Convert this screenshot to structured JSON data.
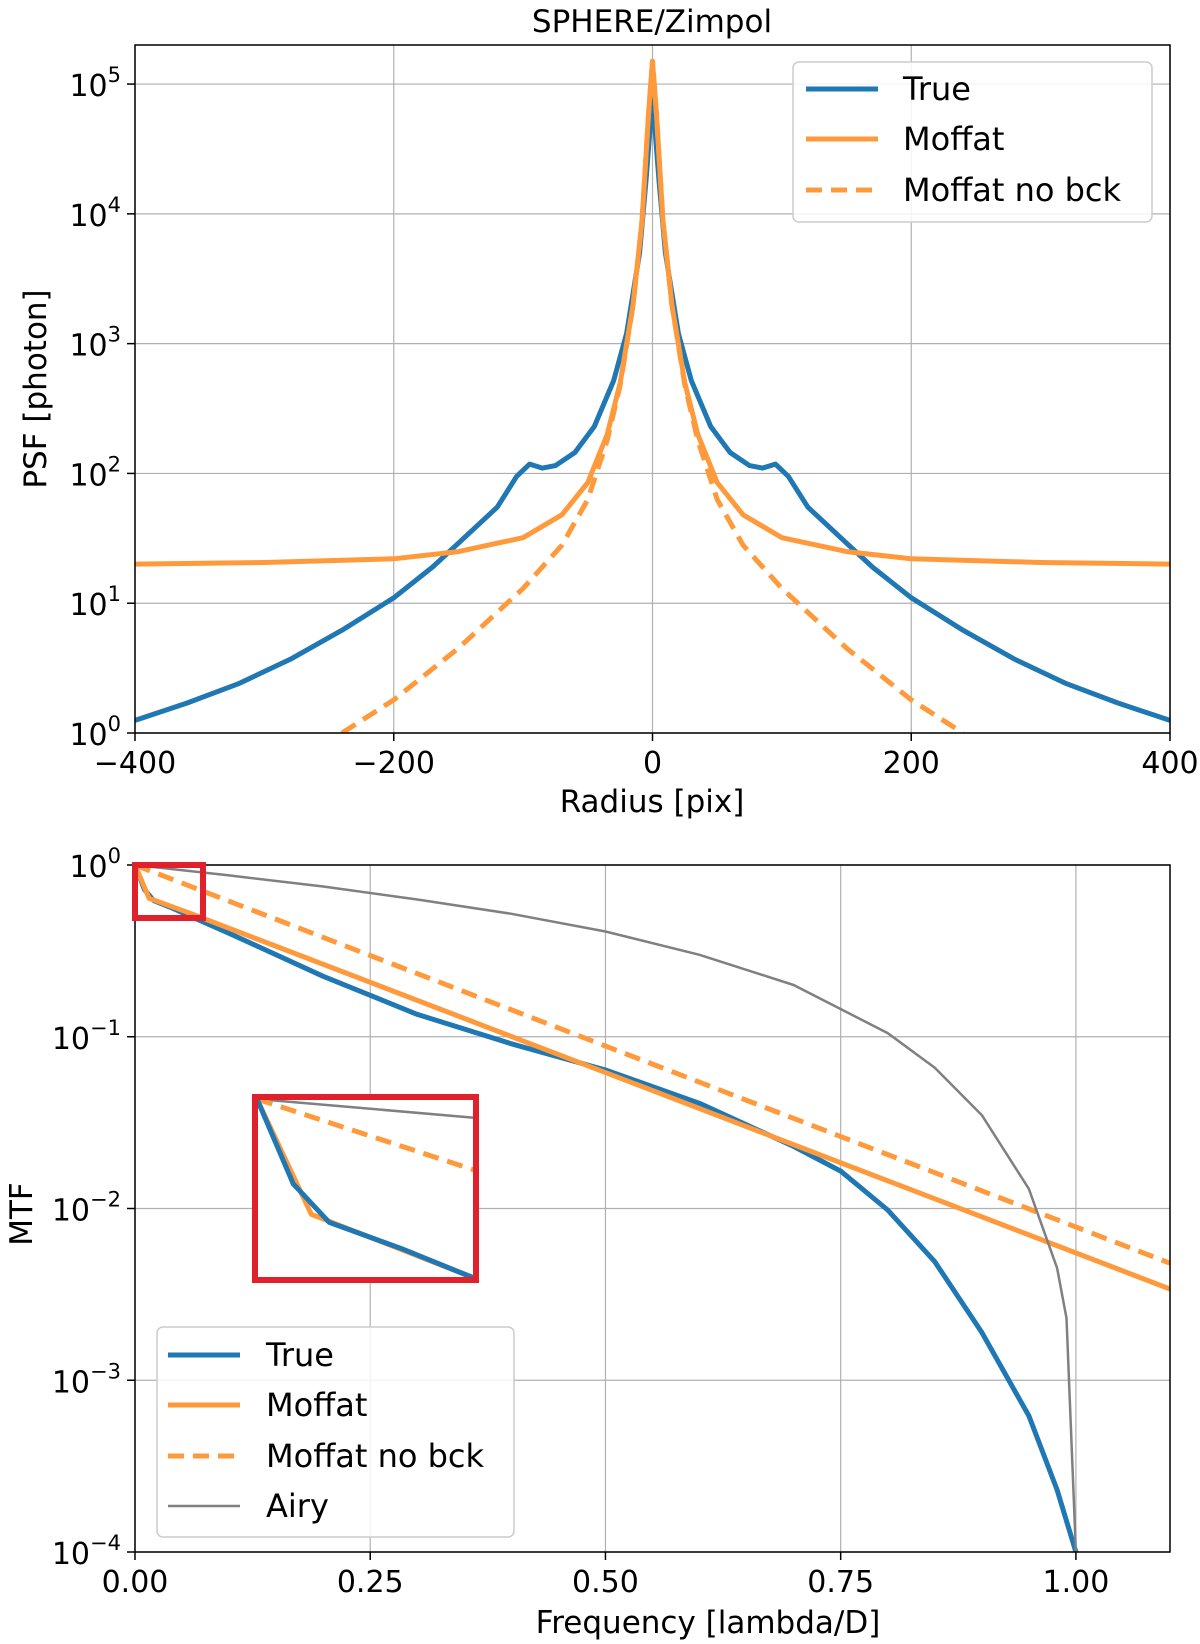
{
  "colors": {
    "true": "#1f77b4",
    "moffat": "#ff9a3c",
    "airy": "#808080",
    "grid": "#b0b0b0",
    "inset": "#e0202a"
  },
  "chart_data": [
    {
      "type": "line",
      "title": "SPHERE/Zimpol",
      "xlabel": "Radius [pix]",
      "ylabel": "PSF [photon]",
      "yscale": "log",
      "xlim": [
        -400,
        400
      ],
      "ylim": [
        1,
        200000
      ],
      "xticks": [
        {
          "value": -400,
          "label": "−400"
        },
        {
          "value": -200,
          "label": "−200"
        },
        {
          "value": 0,
          "label": "0"
        },
        {
          "value": 200,
          "label": "200"
        },
        {
          "value": 400,
          "label": "400"
        }
      ],
      "yticks": [
        {
          "value": 1,
          "base": "10",
          "exp": "0"
        },
        {
          "value": 10,
          "base": "10",
          "exp": "1"
        },
        {
          "value": 100,
          "base": "10",
          "exp": "2"
        },
        {
          "value": 1000,
          "base": "10",
          "exp": "3"
        },
        {
          "value": 10000,
          "base": "10",
          "exp": "4"
        },
        {
          "value": 100000,
          "base": "10",
          "exp": "5"
        }
      ],
      "legend": {
        "position": "top-right",
        "entries": [
          "True",
          "Moffat",
          "Moffat no bck"
        ]
      },
      "series": [
        {
          "name": "True",
          "color": "#1f77b4",
          "style": "solid",
          "x": [
            -400,
            -360,
            -320,
            -280,
            -240,
            -200,
            -170,
            -150,
            -120,
            -105,
            -95,
            -85,
            -75,
            -60,
            -45,
            -30,
            -20,
            -10,
            -5,
            0,
            5,
            10,
            20,
            30,
            45,
            60,
            75,
            85,
            95,
            105,
            120,
            150,
            170,
            200,
            240,
            280,
            320,
            360,
            400
          ],
          "y": [
            1.25,
            1.7,
            2.4,
            3.7,
            6.2,
            11,
            19,
            29,
            55,
            95,
            118,
            110,
            115,
            145,
            230,
            520,
            1200,
            5000,
            18000,
            80000,
            18000,
            5000,
            1200,
            520,
            230,
            145,
            115,
            110,
            118,
            95,
            55,
            29,
            19,
            11,
            6.2,
            3.7,
            2.4,
            1.7,
            1.25
          ]
        },
        {
          "name": "Moffat",
          "color": "#ff9a3c",
          "style": "solid",
          "x": [
            -400,
            -300,
            -200,
            -150,
            -100,
            -70,
            -50,
            -35,
            -25,
            -15,
            -8,
            -3,
            0,
            3,
            8,
            15,
            25,
            35,
            50,
            70,
            100,
            150,
            200,
            300,
            400
          ],
          "y": [
            20,
            20.6,
            22,
            25,
            32,
            48,
            85,
            200,
            500,
            2000,
            9000,
            60000,
            150000,
            60000,
            9000,
            2000,
            500,
            200,
            85,
            48,
            32,
            25,
            22,
            20.6,
            20
          ]
        },
        {
          "name": "Moffat no bck",
          "color": "#ff9a3c",
          "style": "dashed",
          "x": [
            -240,
            -200,
            -150,
            -100,
            -70,
            -50,
            -35,
            -25,
            -15,
            -8,
            -3,
            0,
            3,
            8,
            15,
            25,
            35,
            50,
            70,
            100,
            150,
            200,
            240
          ],
          "y": [
            1,
            1.8,
            4.5,
            13,
            28,
            63,
            180,
            480,
            1980,
            9000,
            60000,
            150000,
            60000,
            9000,
            1980,
            480,
            180,
            63,
            28,
            13,
            4.5,
            1.8,
            1
          ]
        }
      ]
    },
    {
      "type": "line",
      "title": "",
      "xlabel": "Frequency [lambda/D]",
      "ylabel": "MTF",
      "yscale": "log",
      "xlim": [
        0,
        1.1
      ],
      "ylim": [
        0.0001,
        1
      ],
      "xticks": [
        {
          "value": 0,
          "label": "0.00"
        },
        {
          "value": 0.25,
          "label": "0.25"
        },
        {
          "value": 0.5,
          "label": "0.50"
        },
        {
          "value": 0.75,
          "label": "0.75"
        },
        {
          "value": 1.0,
          "label": "1.00"
        }
      ],
      "yticks": [
        {
          "value": 1,
          "base": "10",
          "exp": "0"
        },
        {
          "value": 0.1,
          "base": "10",
          "exp": "−1"
        },
        {
          "value": 0.01,
          "base": "10",
          "exp": "−2"
        },
        {
          "value": 0.001,
          "base": "10",
          "exp": "−3"
        },
        {
          "value": 0.0001,
          "base": "10",
          "exp": "−4"
        }
      ],
      "legend": {
        "position": "lower-left",
        "entries": [
          "True",
          "Moffat",
          "Moffat no bck",
          "Airy"
        ]
      },
      "series": [
        {
          "name": "True",
          "color": "#1f77b4",
          "style": "solid",
          "x": [
            0,
            0.01,
            0.02,
            0.04,
            0.06,
            0.1,
            0.2,
            0.3,
            0.4,
            0.5,
            0.6,
            0.7,
            0.75,
            0.8,
            0.85,
            0.9,
            0.95,
            0.98,
            1.0
          ],
          "y": [
            1,
            0.72,
            0.62,
            0.56,
            0.5,
            0.4,
            0.225,
            0.135,
            0.091,
            0.064,
            0.041,
            0.023,
            0.0165,
            0.0098,
            0.0049,
            0.0019,
            0.00062,
            0.00023,
            0.0001
          ]
        },
        {
          "name": "Moffat",
          "color": "#ff9a3c",
          "style": "solid",
          "x": [
            0,
            0.015,
            0.06,
            1.1
          ],
          "y": [
            1,
            0.64,
            0.52,
            0.0034
          ]
        },
        {
          "name": "Moffat no bck",
          "color": "#ff9a3c",
          "style": "dashed",
          "x": [
            0,
            1.1
          ],
          "y": [
            1,
            0.0048
          ]
        },
        {
          "name": "Airy",
          "color": "#808080",
          "style": "solid",
          "x": [
            0,
            0.1,
            0.2,
            0.3,
            0.4,
            0.5,
            0.6,
            0.7,
            0.8,
            0.85,
            0.9,
            0.95,
            0.98,
            0.99,
            1.0
          ],
          "y": [
            1,
            0.87,
            0.75,
            0.63,
            0.52,
            0.41,
            0.3,
            0.2,
            0.105,
            0.066,
            0.035,
            0.013,
            0.0045,
            0.0023,
            0.0001
          ]
        }
      ],
      "inset": {
        "note": "zoom of 0.00-0.07 region",
        "true": [
          [
            0,
            1
          ],
          [
            0.01,
            0.72
          ],
          [
            0.02,
            0.62
          ],
          [
            0.04,
            0.56
          ],
          [
            0.06,
            0.5
          ]
        ],
        "moffat": [
          [
            0,
            1
          ],
          [
            0.015,
            0.64
          ],
          [
            0.06,
            0.5
          ]
        ],
        "nobck": [
          [
            0,
            1
          ],
          [
            0.06,
            0.76
          ]
        ],
        "airy": [
          [
            0,
            1
          ],
          [
            0.06,
            0.93
          ]
        ]
      }
    }
  ]
}
